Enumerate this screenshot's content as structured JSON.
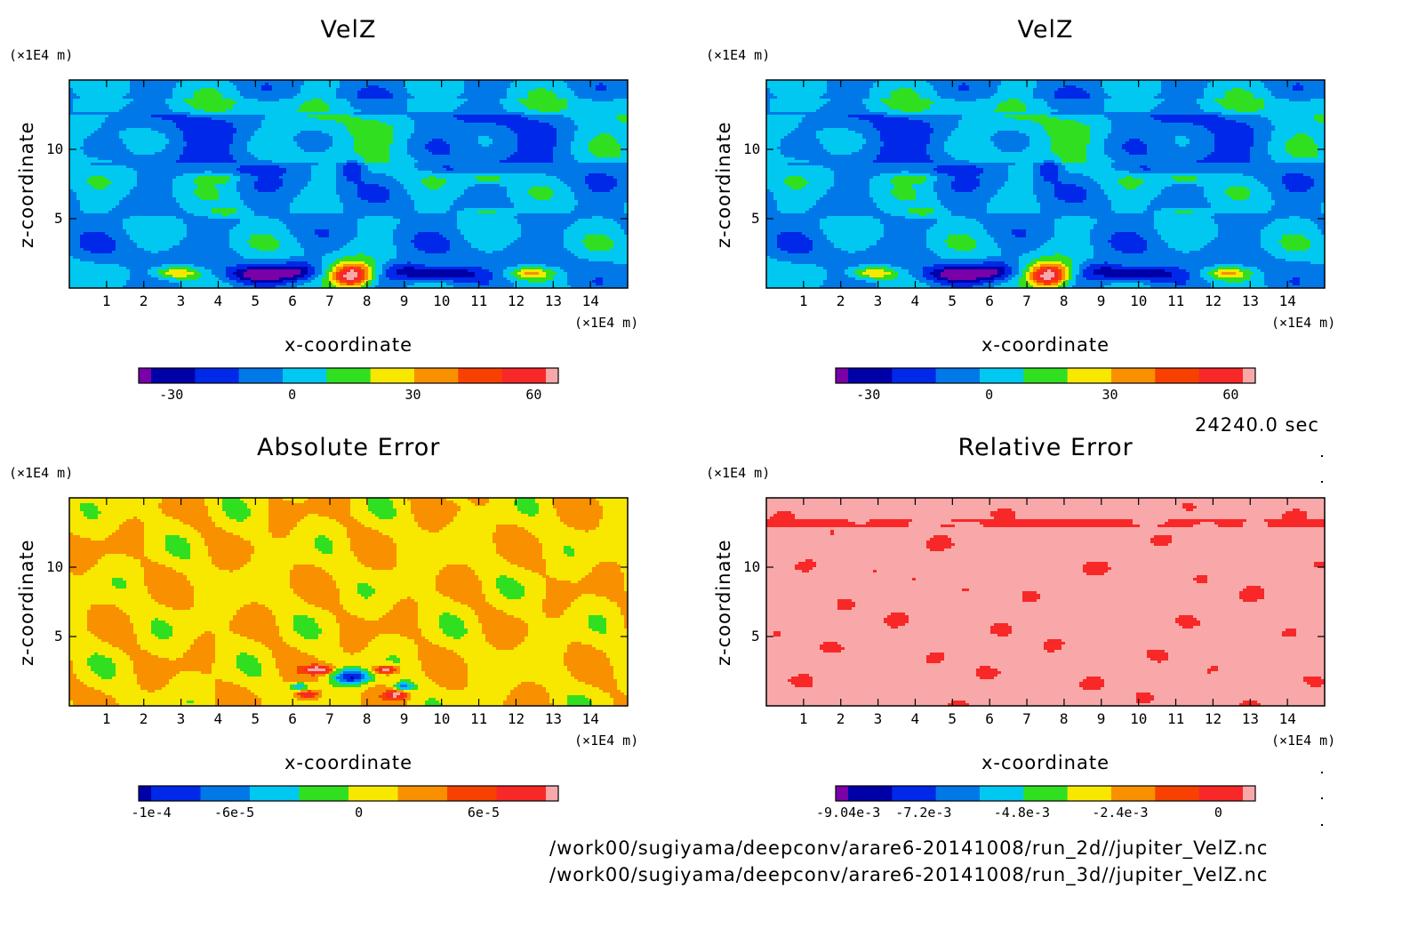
{
  "time_label": "24240.0 sec",
  "files": [
    "/work00/sugiyama/deepconv/arare6-20141008/run_2d//jupiter_VelZ.nc",
    "/work00/sugiyama/deepconv/arare6-20141008/run_3d//jupiter_VelZ.nc"
  ],
  "chart_data": [
    {
      "type": "heatmap",
      "title": "VelZ",
      "xlabel": "x-coordinate",
      "ylabel": "z-coordinate",
      "x_unit": "(×1E4 m)",
      "y_unit": "(×1E4 m)",
      "xlim": [
        0,
        15
      ],
      "ylim": [
        0,
        15
      ],
      "x_ticks": [
        "1",
        "2",
        "3",
        "4",
        "5",
        "6",
        "7",
        "8",
        "9",
        "10",
        "11",
        "12",
        "13",
        "14"
      ],
      "y_ticks": [
        "5",
        "10"
      ],
      "colorbar": {
        "colors": [
          "#7a00a8",
          "#0000a8",
          "#0028e8",
          "#0078e8",
          "#00c8f0",
          "#30e020",
          "#f8e800",
          "#f89000",
          "#f84000",
          "#f82828",
          "#f8a8a8"
        ],
        "labels": [
          "-30",
          "0",
          "30",
          "60"
        ],
        "label_positions": [
          -30,
          0,
          30,
          60
        ],
        "range": [
          -35,
          63
        ]
      },
      "field": "velz"
    },
    {
      "type": "heatmap",
      "title": "VelZ",
      "xlabel": "x-coordinate",
      "ylabel": "z-coordinate",
      "x_unit": "(×1E4 m)",
      "y_unit": "(×1E4 m)",
      "xlim": [
        0,
        15
      ],
      "ylim": [
        0,
        15
      ],
      "x_ticks": [
        "1",
        "2",
        "3",
        "4",
        "5",
        "6",
        "7",
        "8",
        "9",
        "10",
        "11",
        "12",
        "13",
        "14"
      ],
      "y_ticks": [
        "5",
        "10"
      ],
      "colorbar": {
        "colors": [
          "#7a00a8",
          "#0000a8",
          "#0028e8",
          "#0078e8",
          "#00c8f0",
          "#30e020",
          "#f8e800",
          "#f89000",
          "#f84000",
          "#f82828",
          "#f8a8a8"
        ],
        "labels": [
          "-30",
          "0",
          "30",
          "60"
        ],
        "label_positions": [
          -30,
          0,
          30,
          60
        ],
        "range": [
          -35,
          63
        ]
      },
      "field": "velz"
    },
    {
      "type": "heatmap",
      "title": "Absolute Error",
      "xlabel": "x-coordinate",
      "ylabel": "z-coordinate",
      "x_unit": "(×1E4 m)",
      "y_unit": "(×1E4 m)",
      "xlim": [
        0,
        15
      ],
      "ylim": [
        0,
        15
      ],
      "x_ticks": [
        "1",
        "2",
        "3",
        "4",
        "5",
        "6",
        "7",
        "8",
        "9",
        "10",
        "11",
        "12",
        "13",
        "14"
      ],
      "y_ticks": [
        "5",
        "10"
      ],
      "colorbar": {
        "colors": [
          "#0000a8",
          "#0028e8",
          "#0078e8",
          "#00c8f0",
          "#30e020",
          "#f8e800",
          "#f89000",
          "#f84000",
          "#f82828",
          "#f8a8a8"
        ],
        "labels": [
          "-1e-4",
          "-6e-5",
          "0",
          "6e-5"
        ],
        "label_positions": [
          -0.0001,
          -6e-05,
          0,
          6e-05
        ],
        "range": [
          -0.0001,
          9e-05
        ]
      },
      "field": "abserr"
    },
    {
      "type": "heatmap",
      "title": "Relative Error",
      "xlabel": "x-coordinate",
      "ylabel": "z-coordinate",
      "x_unit": "(×1E4 m)",
      "y_unit": "(×1E4 m)",
      "xlim": [
        0,
        15
      ],
      "ylim": [
        0,
        15
      ],
      "x_ticks": [
        "1",
        "2",
        "3",
        "4",
        "5",
        "6",
        "7",
        "8",
        "9",
        "10",
        "11",
        "12",
        "13",
        "14"
      ],
      "y_ticks": [
        "5",
        "10"
      ],
      "colorbar": {
        "colors": [
          "#7a00a8",
          "#0000a8",
          "#0028e8",
          "#0078e8",
          "#00c8f0",
          "#30e020",
          "#f8e800",
          "#f89000",
          "#f84000",
          "#f82828",
          "#f8a8a8"
        ],
        "labels": [
          "-9.04e-3",
          "-7.2e-3",
          "-4.8e-3",
          "-2.4e-3",
          "0"
        ],
        "label_positions": [
          -0.00904,
          -0.0072,
          -0.0048,
          -0.0024,
          0
        ],
        "range": [
          -0.00904,
          0.0006
        ]
      },
      "field": "relerr"
    }
  ]
}
